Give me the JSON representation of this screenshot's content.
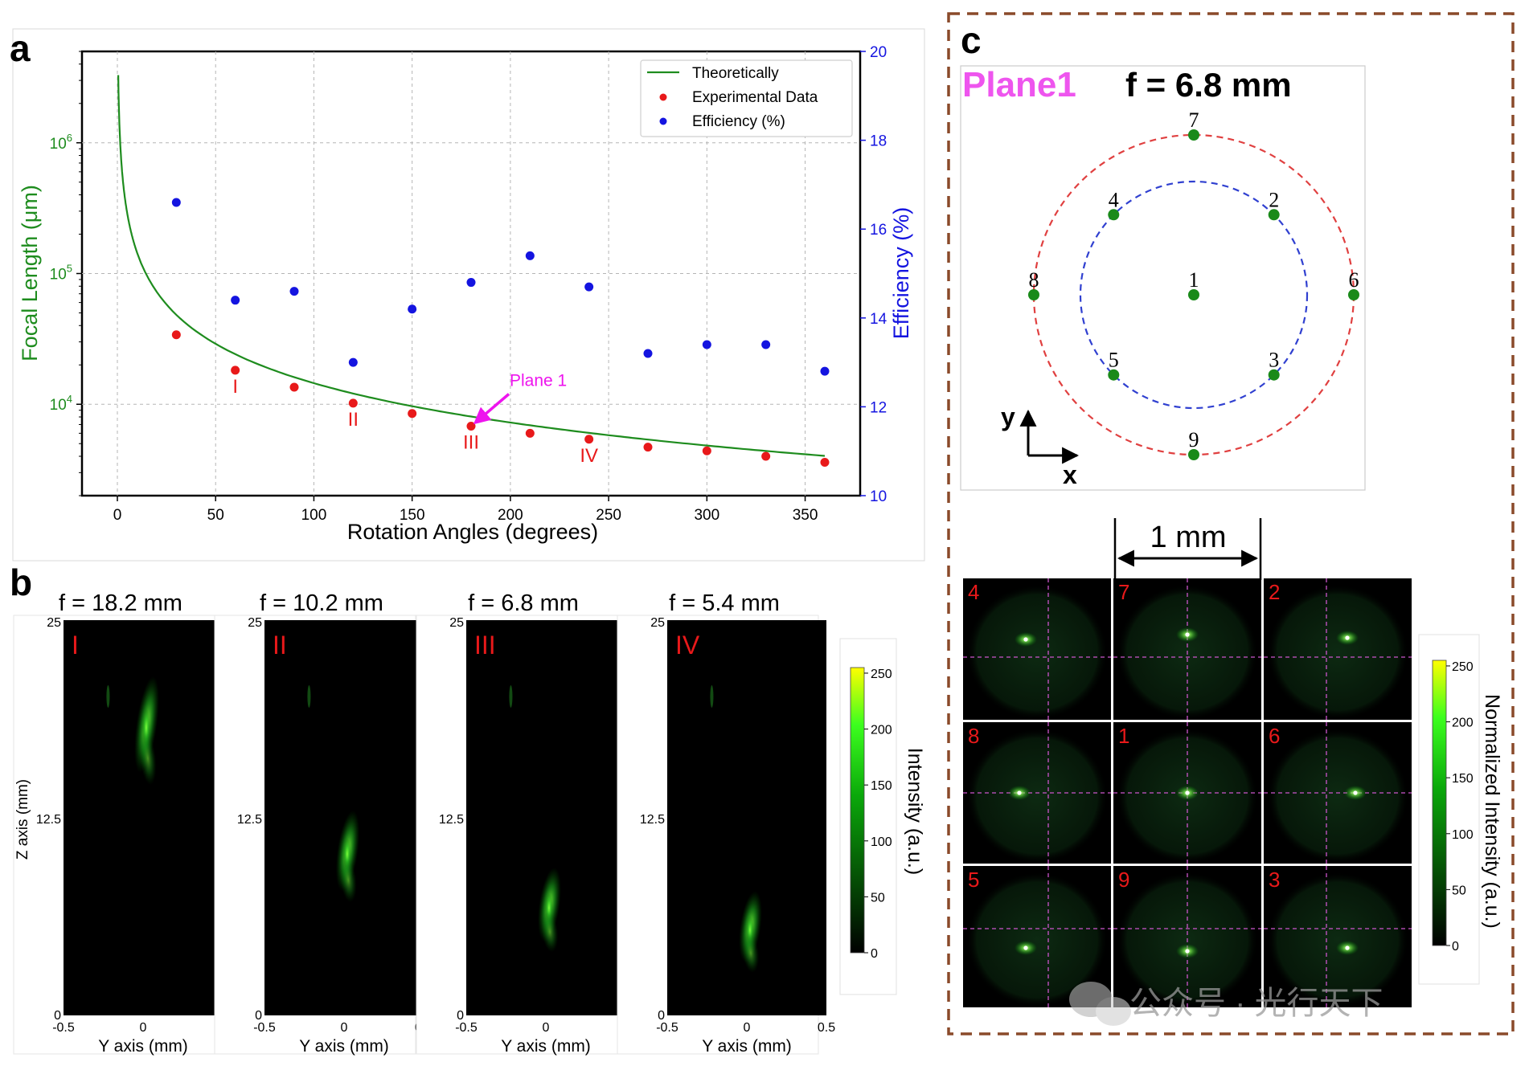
{
  "panels": {
    "a": "a",
    "b": "b",
    "c": "c"
  },
  "colors": {
    "theory": "#1e8c1e",
    "experimental": "#e8191a",
    "efficiency": "#1414e0",
    "annotation": "#ee14ee",
    "ring_outer": "#e04040",
    "ring_inner": "#3040d0",
    "border_dashed": "#8a4a2a"
  },
  "chart_data": [
    {
      "type": "scatter",
      "panel": "a",
      "xlabel": "Rotation Angles (degrees)",
      "ylabel": "Focal Length (μm)",
      "y2label": "Efficiency (%)",
      "xlim": [
        -18,
        378
      ],
      "xticks": [
        "0",
        "50",
        "100",
        "150",
        "200",
        "250",
        "300",
        "350"
      ],
      "ylim": [
        2000,
        5000000
      ],
      "yscale": "log",
      "yticks": [
        {
          "base": "10",
          "exp": "4",
          "value": 10000
        },
        {
          "base": "10",
          "exp": "5",
          "value": 100000
        },
        {
          "base": "10",
          "exp": "6",
          "value": 1000000
        }
      ],
      "y2lim": [
        10,
        20
      ],
      "y2ticks": [
        "10",
        "12",
        "14",
        "16",
        "18",
        "20"
      ],
      "legend": {
        "location": "top-right",
        "entries": [
          "Theoretically",
          "Experimental Data",
          "Efficiency (%)"
        ]
      },
      "grid": true,
      "theory_label": "Theoretically",
      "theory_note": "f proportional to 1/angle, from 3.3e6 μm at 0.4° to 4.0e3 μm at 360°",
      "theory_k": 1450000,
      "experimental": {
        "name": "Experimental Data",
        "x": [
          30,
          60,
          90,
          120,
          150,
          180,
          210,
          240,
          270,
          300,
          330,
          360
        ],
        "y": [
          34000,
          18200,
          13500,
          10200,
          8500,
          6800,
          6000,
          5400,
          4700,
          4400,
          4000,
          3600
        ]
      },
      "efficiency": {
        "name": "Efficiency (%)",
        "x": [
          30,
          60,
          90,
          120,
          150,
          180,
          210,
          240,
          270,
          300,
          330,
          360
        ],
        "y": [
          16.6,
          14.4,
          14.6,
          13.0,
          14.2,
          14.8,
          15.4,
          14.7,
          13.2,
          13.4,
          13.4,
          12.8
        ]
      },
      "roman_labels": [
        {
          "text": "I",
          "x": 60
        },
        {
          "text": "II",
          "x": 120
        },
        {
          "text": "III",
          "x": 180
        },
        {
          "text": "IV",
          "x": 240
        }
      ],
      "annotation": {
        "text": "Plane 1",
        "x": 180,
        "y": 6800
      }
    },
    {
      "type": "heatmap",
      "panel": "b",
      "xlabel": "Y axis (mm)",
      "ylabel": "Z axis (mm)",
      "xticks": [
        "-0.5",
        "0",
        "0.5"
      ],
      "yticks": [
        "0",
        "12.5",
        "25"
      ],
      "subplots": [
        {
          "title": "f = 18.2 mm",
          "label": "I",
          "focus_z": 18.2
        },
        {
          "title": "f = 10.2 mm",
          "label": "II",
          "focus_z": 10.2
        },
        {
          "title": "f = 6.8 mm",
          "label": "III",
          "focus_z": 6.8
        },
        {
          "title": "f = 5.4 mm",
          "label": "IV",
          "focus_z": 5.4
        }
      ],
      "colorbar": {
        "label": "Intensity (a.u.)",
        "ticks": [
          "0",
          "50",
          "100",
          "150",
          "200",
          "250"
        ],
        "range": [
          0,
          255
        ]
      }
    },
    {
      "type": "heatmap",
      "panel": "c",
      "grid_order": [
        "4",
        "7",
        "2",
        "8",
        "1",
        "6",
        "5",
        "9",
        "3"
      ],
      "scale_bar": "1 mm",
      "colorbar": {
        "label": "Normalized Intensity (a.u.)",
        "ticks": [
          "0",
          "50",
          "100",
          "150",
          "200",
          "250"
        ],
        "range": [
          0,
          255
        ]
      }
    }
  ],
  "plane_diagram": {
    "title": "Plane1",
    "focal": "f = 6.8 mm",
    "axis_y": "y",
    "axis_x": "x",
    "points": [
      {
        "label": "7",
        "ring": "outer",
        "angle": 90
      },
      {
        "label": "6",
        "ring": "outer",
        "angle": 0
      },
      {
        "label": "8",
        "ring": "outer",
        "angle": 180
      },
      {
        "label": "9",
        "ring": "outer",
        "angle": 270
      },
      {
        "label": "2",
        "ring": "inner",
        "angle": 45
      },
      {
        "label": "4",
        "ring": "inner",
        "angle": 135
      },
      {
        "label": "5",
        "ring": "inner",
        "angle": 225
      },
      {
        "label": "3",
        "ring": "inner",
        "angle": 315
      },
      {
        "label": "1",
        "ring": "center",
        "angle": 0
      }
    ]
  },
  "watermark": "公众号 · 光行天下"
}
